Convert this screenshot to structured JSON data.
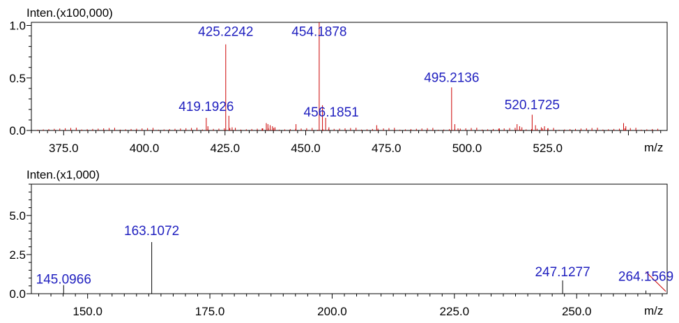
{
  "colors": {
    "peak": "#cc0000",
    "label": "#1f1fbf",
    "axis": "#000000",
    "frame": "#000000"
  },
  "chart_data": [
    {
      "type": "bar",
      "ylabel": "Inten.(x100,000)",
      "xlabel": "m/z",
      "xlim": [
        365.0,
        562.0
      ],
      "ylim": [
        0.0,
        1.03
      ],
      "x_ticks": [
        375.0,
        400.0,
        425.0,
        450.0,
        475.0,
        500.0,
        525.0
      ],
      "x_tick_labels": [
        "375.0",
        "400.0",
        "425.0",
        "450.0",
        "475.0",
        "500.0",
        "525.0"
      ],
      "y_ticks": [
        0.0,
        0.5,
        1.0
      ],
      "y_tick_labels": [
        "0.0",
        "0.5",
        "1.0"
      ],
      "peaks": [
        {
          "x": 419.1926,
          "y": 0.12
        },
        {
          "x": 419.7,
          "y": 0.04
        },
        {
          "x": 425.2242,
          "y": 0.82
        },
        {
          "x": 426.2,
          "y": 0.14
        },
        {
          "x": 427.2,
          "y": 0.03
        },
        {
          "x": 436.5,
          "y": 0.02
        },
        {
          "x": 437.8,
          "y": 0.07
        },
        {
          "x": 438.3,
          "y": 0.06
        },
        {
          "x": 439.0,
          "y": 0.05
        },
        {
          "x": 439.7,
          "y": 0.04
        },
        {
          "x": 440.5,
          "y": 0.03
        },
        {
          "x": 447.0,
          "y": 0.06
        },
        {
          "x": 454.1878,
          "y": 1.03
        },
        {
          "x": 455.2,
          "y": 0.24
        },
        {
          "x": 456.1851,
          "y": 0.12
        },
        {
          "x": 457.2,
          "y": 0.03
        },
        {
          "x": 472.0,
          "y": 0.05
        },
        {
          "x": 495.2136,
          "y": 0.41
        },
        {
          "x": 496.2,
          "y": 0.06
        },
        {
          "x": 497.2,
          "y": 0.02
        },
        {
          "x": 510.0,
          "y": 0.02
        },
        {
          "x": 515.5,
          "y": 0.06
        },
        {
          "x": 516.3,
          "y": 0.04
        },
        {
          "x": 517.0,
          "y": 0.03
        },
        {
          "x": 520.1725,
          "y": 0.15
        },
        {
          "x": 521.2,
          "y": 0.05
        },
        {
          "x": 523.0,
          "y": 0.03
        },
        {
          "x": 524.0,
          "y": 0.04
        },
        {
          "x": 525.0,
          "y": 0.02
        },
        {
          "x": 548.5,
          "y": 0.07
        },
        {
          "x": 549.2,
          "y": 0.04
        }
      ],
      "annotations": [
        {
          "text": "425.2242",
          "x": 425.2242,
          "y": 0.82
        },
        {
          "text": "454.1878",
          "x": 454.1878,
          "y": 0.82
        },
        {
          "text": "419.1926",
          "x": 419.1926,
          "y": 0.12
        },
        {
          "text": "456.1851",
          "x": 456.1851,
          "y": 0.12
        },
        {
          "text": "495.2136",
          "x": 495.2136,
          "y": 0.41
        },
        {
          "text": "520.1725",
          "x": 520.1725,
          "y": 0.15
        }
      ]
    },
    {
      "type": "bar",
      "ylabel": "Inten.(x1,000)",
      "xlabel": "m/z",
      "xlim": [
        138.5,
        268.5
      ],
      "ylim": [
        0.0,
        7.0
      ],
      "x_ticks": [
        150.0,
        175.0,
        200.0,
        225.0,
        250.0
      ],
      "x_tick_labels": [
        "150.0",
        "175.0",
        "200.0",
        "225.0",
        "250.0"
      ],
      "y_ticks": [
        0.0,
        2.5,
        5.0
      ],
      "y_tick_labels": [
        "0.0",
        "2.5",
        "5.0"
      ],
      "peaks": [
        {
          "x": 145.0966,
          "y": 0.55
        },
        {
          "x": 163.1072,
          "y": 3.3
        },
        {
          "x": 247.1277,
          "y": 0.85
        },
        {
          "x": 264.1569,
          "y": 0.2
        }
      ],
      "annotations": [
        {
          "text": "145.0966",
          "x": 145.0966,
          "y": 0.55
        },
        {
          "text": "163.1072",
          "x": 163.1072,
          "y": 3.3
        },
        {
          "text": "247.1277",
          "x": 247.1277,
          "y": 0.85
        },
        {
          "text": "264.1569",
          "x": 264.1569,
          "y": 0.2
        }
      ]
    }
  ]
}
